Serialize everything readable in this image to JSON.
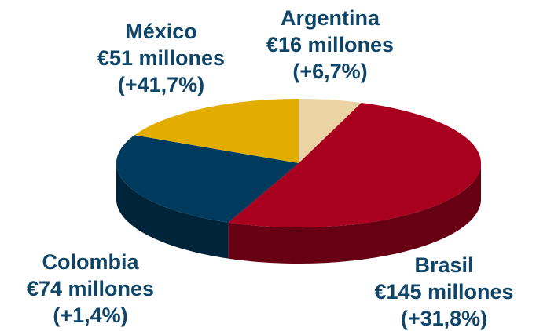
{
  "chart_data": {
    "type": "pie",
    "categories": [
      "Argentina",
      "Brasil",
      "Colombia",
      "México"
    ],
    "values": [
      16,
      145,
      74,
      51
    ],
    "value_labels": [
      "€16 millones",
      "€145 millones",
      "€74 millones",
      "€51 millones"
    ],
    "annotations": [
      "(+6,7%)",
      "(+31,8%)",
      "(+1,4%)",
      "(+41,7%)"
    ],
    "colors": [
      "#ecd3a4",
      "#a8001e",
      "#003a5c",
      "#e3ad00"
    ]
  }
}
